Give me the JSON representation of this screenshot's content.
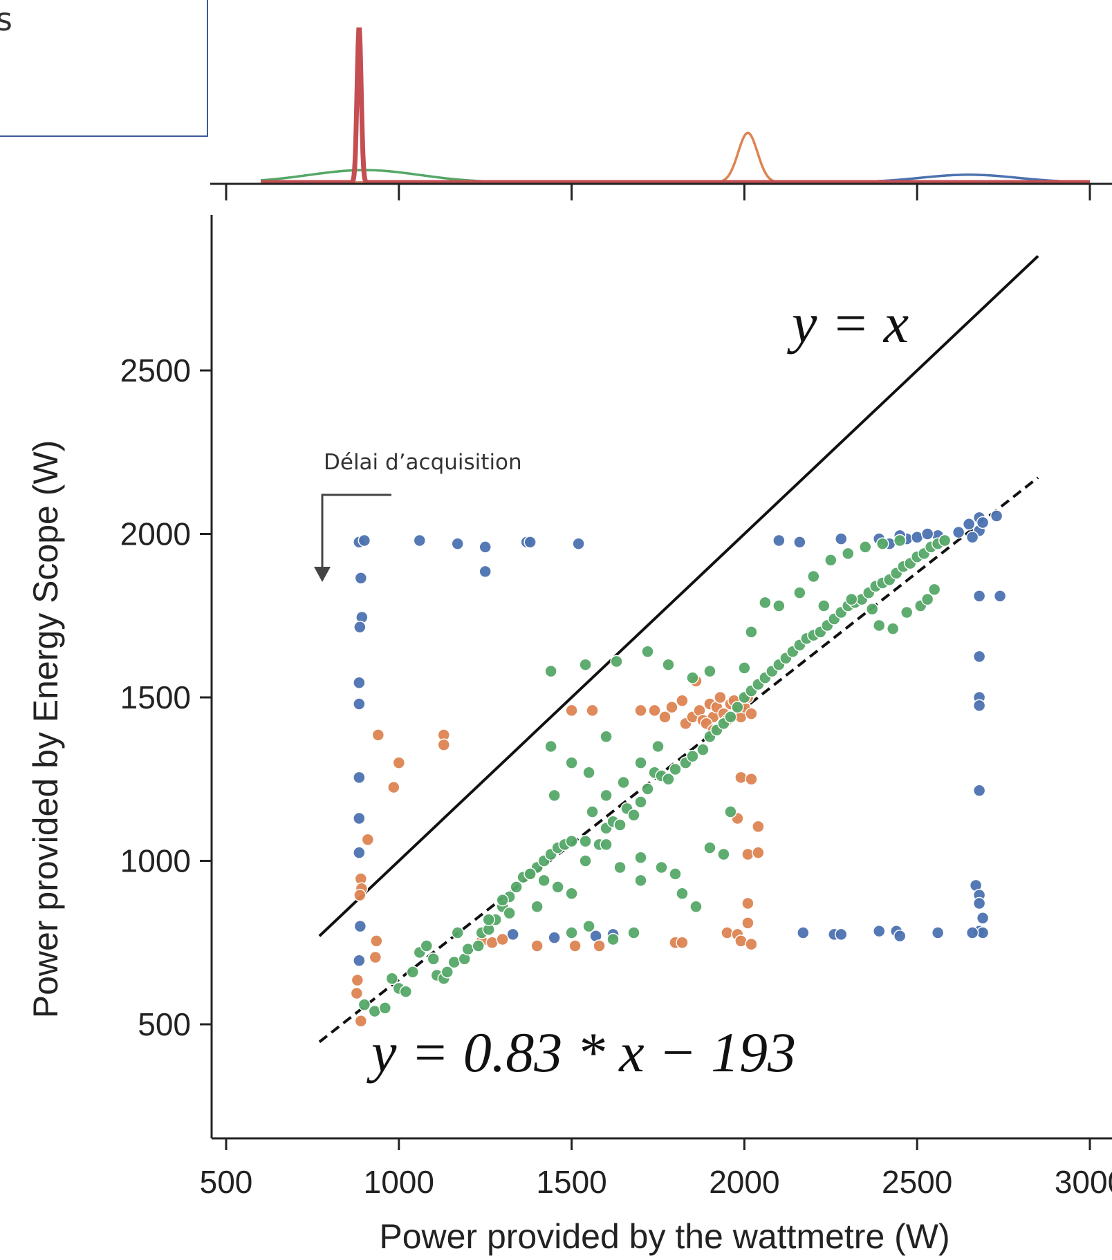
{
  "chart_data": {
    "type": "scatter",
    "title": "",
    "xlabel": "Power provided by the wattmetre (W)",
    "ylabel": "Power provided by Energy Scope (W)",
    "xlim": [
      450,
      3000
    ],
    "ylim": [
      170,
      2950
    ],
    "x_ticks": [
      500,
      1000,
      1500,
      2000,
      2500,
      3000
    ],
    "x_tick_labels": [
      "500",
      "1000",
      "1500",
      "2000",
      "2500",
      "3000"
    ],
    "y_ticks": [
      500,
      1000,
      1500,
      2000,
      2500
    ],
    "y_tick_labels": [
      "500",
      "1000",
      "1500",
      "2000",
      "2500"
    ],
    "grid": false,
    "legend_fragment": "s",
    "colors": {
      "blue": "#4c72b0",
      "orange": "#dd8452",
      "green": "#55a868",
      "red": "#c44e52",
      "line": "#111111"
    },
    "reference_lines": [
      {
        "label": "y = x",
        "slope": 1,
        "intercept": 0,
        "x_range": [
          770,
          2850
        ],
        "style": "solid"
      },
      {
        "label": "y = 0.83 * x − 193",
        "slope": 0.83,
        "intercept": -193,
        "x_range": [
          770,
          2850
        ],
        "style": "dashed"
      }
    ],
    "annotations": [
      {
        "text": "Délai d’acquisition"
      }
    ],
    "series": [
      {
        "color_key": "blue",
        "points": [
          [
            885,
            1975
          ],
          [
            900,
            1980
          ],
          [
            1060,
            1980
          ],
          [
            1170,
            1970
          ],
          [
            1250,
            1960
          ],
          [
            1250,
            1885
          ],
          [
            1370,
            1975
          ],
          [
            1380,
            1975
          ],
          [
            1520,
            1970
          ],
          [
            890,
            1865
          ],
          [
            893,
            1745
          ],
          [
            887,
            1715
          ],
          [
            885,
            1545
          ],
          [
            885,
            1480
          ],
          [
            885,
            1255
          ],
          [
            885,
            1130
          ],
          [
            885,
            1025
          ],
          [
            888,
            800
          ],
          [
            885,
            695
          ],
          [
            2100,
            1980
          ],
          [
            2160,
            1975
          ],
          [
            2280,
            1985
          ],
          [
            2390,
            1985
          ],
          [
            2420,
            1970
          ],
          [
            2470,
            1985
          ],
          [
            2500,
            1990
          ],
          [
            2560,
            1995
          ],
          [
            2620,
            2005
          ],
          [
            2650,
            2030
          ],
          [
            2680,
            2050
          ],
          [
            2730,
            2055
          ],
          [
            2680,
            2010
          ],
          [
            2690,
            2035
          ],
          [
            2660,
            1990
          ],
          [
            2450,
            1995
          ],
          [
            2530,
            2000
          ],
          [
            2680,
            1810
          ],
          [
            2740,
            1810
          ],
          [
            2680,
            1625
          ],
          [
            2680,
            1500
          ],
          [
            2680,
            1475
          ],
          [
            2680,
            1215
          ],
          [
            2670,
            925
          ],
          [
            2680,
            895
          ],
          [
            2680,
            870
          ],
          [
            2690,
            825
          ],
          [
            2680,
            785
          ],
          [
            2690,
            780
          ],
          [
            2170,
            780
          ],
          [
            2260,
            775
          ],
          [
            2280,
            775
          ],
          [
            2390,
            785
          ],
          [
            2440,
            785
          ],
          [
            2450,
            770
          ],
          [
            2560,
            780
          ],
          [
            2660,
            780
          ],
          [
            1330,
            775
          ],
          [
            1450,
            765
          ],
          [
            1570,
            770
          ],
          [
            1620,
            775
          ]
        ]
      },
      {
        "color_key": "orange",
        "points": [
          [
            940,
            1385
          ],
          [
            1130,
            1385
          ],
          [
            1130,
            1355
          ],
          [
            1000,
            1300
          ],
          [
            985,
            1225
          ],
          [
            910,
            1065
          ],
          [
            890,
            945
          ],
          [
            892,
            915
          ],
          [
            887,
            895
          ],
          [
            880,
            635
          ],
          [
            878,
            595
          ],
          [
            890,
            510
          ],
          [
            935,
            755
          ],
          [
            932,
            705
          ],
          [
            1240,
            755
          ],
          [
            1270,
            750
          ],
          [
            1300,
            760
          ],
          [
            1400,
            740
          ],
          [
            1510,
            740
          ],
          [
            1580,
            740
          ],
          [
            1800,
            750
          ],
          [
            1820,
            750
          ],
          [
            1950,
            780
          ],
          [
            1980,
            775
          ],
          [
            1990,
            755
          ],
          [
            2010,
            810
          ],
          [
            2020,
            745
          ],
          [
            2010,
            870
          ],
          [
            1500,
            1460
          ],
          [
            1560,
            1460
          ],
          [
            1700,
            1460
          ],
          [
            1740,
            1460
          ],
          [
            1770,
            1440
          ],
          [
            1790,
            1470
          ],
          [
            1820,
            1490
          ],
          [
            1830,
            1420
          ],
          [
            1850,
            1440
          ],
          [
            1860,
            1550
          ],
          [
            1870,
            1460
          ],
          [
            1880,
            1430
          ],
          [
            1900,
            1480
          ],
          [
            1910,
            1440
          ],
          [
            1920,
            1470
          ],
          [
            1930,
            1500
          ],
          [
            1940,
            1450
          ],
          [
            1950,
            1430
          ],
          [
            1960,
            1480
          ],
          [
            1970,
            1490
          ],
          [
            1980,
            1460
          ],
          [
            1990,
            1440
          ],
          [
            2000,
            1470
          ],
          [
            2010,
            1500
          ],
          [
            2020,
            1450
          ],
          [
            1890,
            1420
          ],
          [
            1910,
            1400
          ],
          [
            1990,
            1255
          ],
          [
            2020,
            1250
          ],
          [
            1980,
            1130
          ],
          [
            2040,
            1105
          ],
          [
            2010,
            1020
          ],
          [
            2040,
            1025
          ]
        ]
      },
      {
        "color_key": "green",
        "points": [
          [
            900,
            560
          ],
          [
            930,
            540
          ],
          [
            960,
            550
          ],
          [
            980,
            640
          ],
          [
            1000,
            610
          ],
          [
            1020,
            600
          ],
          [
            1040,
            660
          ],
          [
            1060,
            720
          ],
          [
            1080,
            740
          ],
          [
            1100,
            700
          ],
          [
            1110,
            650
          ],
          [
            1130,
            640
          ],
          [
            1140,
            660
          ],
          [
            1160,
            690
          ],
          [
            1170,
            780
          ],
          [
            1190,
            700
          ],
          [
            1200,
            730
          ],
          [
            1230,
            740
          ],
          [
            1240,
            780
          ],
          [
            1260,
            790
          ],
          [
            1280,
            820
          ],
          [
            1300,
            860
          ],
          [
            1320,
            890
          ],
          [
            1340,
            920
          ],
          [
            1360,
            950
          ],
          [
            1380,
            960
          ],
          [
            1400,
            980
          ],
          [
            1420,
            1000
          ],
          [
            1440,
            1020
          ],
          [
            1460,
            1040
          ],
          [
            1480,
            1050
          ],
          [
            1500,
            1060
          ],
          [
            1540,
            1060
          ],
          [
            1580,
            1050
          ],
          [
            1600,
            1100
          ],
          [
            1620,
            1120
          ],
          [
            1640,
            1110
          ],
          [
            1660,
            1160
          ],
          [
            1680,
            1140
          ],
          [
            1700,
            1180
          ],
          [
            1720,
            1220
          ],
          [
            1740,
            1270
          ],
          [
            1760,
            1260
          ],
          [
            1780,
            1250
          ],
          [
            1800,
            1280
          ],
          [
            1830,
            1300
          ],
          [
            1850,
            1320
          ],
          [
            1880,
            1340
          ],
          [
            1900,
            1380
          ],
          [
            1920,
            1400
          ],
          [
            1940,
            1420
          ],
          [
            1960,
            1440
          ],
          [
            1980,
            1470
          ],
          [
            2000,
            1500
          ],
          [
            2020,
            1520
          ],
          [
            2040,
            1540
          ],
          [
            2060,
            1560
          ],
          [
            2080,
            1580
          ],
          [
            2100,
            1600
          ],
          [
            2120,
            1620
          ],
          [
            2140,
            1640
          ],
          [
            2160,
            1660
          ],
          [
            2180,
            1680
          ],
          [
            2200,
            1690
          ],
          [
            2220,
            1700
          ],
          [
            2240,
            1720
          ],
          [
            2260,
            1740
          ],
          [
            2280,
            1760
          ],
          [
            2300,
            1780
          ],
          [
            2320,
            1790
          ],
          [
            2340,
            1800
          ],
          [
            2360,
            1820
          ],
          [
            2380,
            1840
          ],
          [
            2400,
            1850
          ],
          [
            2420,
            1860
          ],
          [
            2440,
            1880
          ],
          [
            2460,
            1900
          ],
          [
            2480,
            1910
          ],
          [
            2500,
            1930
          ],
          [
            2520,
            1940
          ],
          [
            2540,
            1960
          ],
          [
            2560,
            1970
          ],
          [
            2580,
            1980
          ],
          [
            1440,
            1580
          ],
          [
            1540,
            1600
          ],
          [
            1630,
            1610
          ],
          [
            1720,
            1640
          ],
          [
            1780,
            1600
          ],
          [
            1850,
            1560
          ],
          [
            1900,
            1580
          ],
          [
            2000,
            1590
          ],
          [
            2020,
            1700
          ],
          [
            2060,
            1790
          ],
          [
            2100,
            1780
          ],
          [
            2160,
            1820
          ],
          [
            2200,
            1870
          ],
          [
            2250,
            1920
          ],
          [
            2300,
            1940
          ],
          [
            2350,
            1960
          ],
          [
            2400,
            1970
          ],
          [
            2450,
            1980
          ],
          [
            2230,
            1780
          ],
          [
            2310,
            1800
          ],
          [
            2370,
            1770
          ],
          [
            2390,
            1720
          ],
          [
            2430,
            1710
          ],
          [
            2470,
            1760
          ],
          [
            2510,
            1780
          ],
          [
            2530,
            1800
          ],
          [
            2550,
            1830
          ],
          [
            1700,
            1010
          ],
          [
            1760,
            980
          ],
          [
            1800,
            960
          ],
          [
            1820,
            900
          ],
          [
            1860,
            860
          ],
          [
            1900,
            1040
          ],
          [
            1940,
            1020
          ],
          [
            1960,
            1150
          ],
          [
            1380,
            960
          ],
          [
            1420,
            940
          ],
          [
            1460,
            920
          ],
          [
            1500,
            900
          ],
          [
            1540,
            1000
          ],
          [
            1600,
            1050
          ],
          [
            1640,
            980
          ],
          [
            1700,
            940
          ],
          [
            1320,
            840
          ],
          [
            1260,
            820
          ],
          [
            1300,
            880
          ],
          [
            1400,
            860
          ],
          [
            1500,
            780
          ],
          [
            1550,
            800
          ],
          [
            1620,
            760
          ],
          [
            1680,
            780
          ],
          [
            1560,
            1150
          ],
          [
            1600,
            1200
          ],
          [
            1650,
            1240
          ],
          [
            1700,
            1300
          ],
          [
            1750,
            1350
          ],
          [
            1600,
            1380
          ],
          [
            1440,
            1350
          ],
          [
            1500,
            1300
          ],
          [
            1550,
            1270
          ],
          [
            1450,
            1200
          ]
        ]
      }
    ],
    "marginal_x": {
      "type": "kde",
      "series": [
        {
          "color_key": "red",
          "peak_x": 885,
          "width": 6,
          "height": 1.0
        },
        {
          "color_key": "orange",
          "peak_x": 2010,
          "width": 28,
          "height": 0.32
        },
        {
          "color_key": "green",
          "peak_x": 900,
          "width": 160,
          "height": 0.08
        },
        {
          "color_key": "blue",
          "peak_x": 2650,
          "width": 140,
          "height": 0.05
        }
      ]
    }
  }
}
